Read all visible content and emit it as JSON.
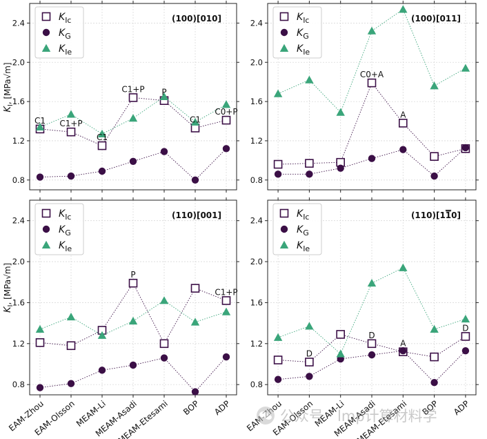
{
  "chart_data": {
    "type": "scatter",
    "layout": "2x2 grid",
    "shared_categories": [
      "EAM-Zhou",
      "EAM-Olsson",
      "MEAM-Li",
      "MEAM-Asadi",
      "MEAM-Etesami",
      "BOP",
      "ADP"
    ],
    "shared_ylabel_main": "K",
    "shared_ylabel_sub": "I",
    "shared_ylabel_unit": ", [MPa√m]",
    "ylim": [
      0.7,
      2.6
    ],
    "yticks": [
      "0.8",
      "1.2",
      "1.6",
      "2.0",
      "2.4"
    ],
    "grid": true,
    "legend_position": "upper left",
    "legend": [
      {
        "main": "K",
        "sub": "Ic",
        "marker": "square-open",
        "color": "#3b0f46"
      },
      {
        "main": "K",
        "sub": "G",
        "marker": "circle",
        "color": "#3b0f46"
      },
      {
        "main": "K",
        "sub": "Ie",
        "marker": "triangle",
        "color": "#3aa57a"
      }
    ],
    "panels": [
      {
        "title": "(100)[010]",
        "series": [
          {
            "name": "KIc",
            "values": [
              1.32,
              1.29,
              1.15,
              1.64,
              1.61,
              1.33,
              1.41
            ]
          },
          {
            "name": "KG",
            "values": [
              0.83,
              0.84,
              0.89,
              0.99,
              1.09,
              0.8,
              1.12
            ]
          },
          {
            "name": "KIe",
            "values": [
              1.34,
              1.47,
              1.27,
              1.43,
              1.65,
              1.39,
              1.57
            ]
          }
        ],
        "annotations": [
          "C1",
          "C1+P",
          "C1",
          "C1+P",
          "P",
          "C1",
          "C0+P"
        ]
      },
      {
        "title": "(100)[011]",
        "series": [
          {
            "name": "KIc",
            "values": [
              0.96,
              0.97,
              0.98,
              1.79,
              1.38,
              1.04,
              1.12
            ]
          },
          {
            "name": "KG",
            "values": [
              0.86,
              0.86,
              0.92,
              1.02,
              1.11,
              0.84,
              1.13
            ]
          },
          {
            "name": "KIe",
            "values": [
              1.68,
              1.82,
              1.49,
              2.32,
              2.54,
              1.76,
              1.94
            ]
          }
        ],
        "annotations": [
          "",
          "",
          "",
          "C0+A",
          "A",
          "",
          ""
        ]
      },
      {
        "title": "(110)[001]",
        "series": [
          {
            "name": "KIc",
            "values": [
              1.21,
              1.18,
              1.33,
              1.79,
              1.2,
              1.74,
              1.62
            ]
          },
          {
            "name": "KG",
            "values": [
              0.77,
              0.81,
              0.94,
              0.99,
              1.06,
              0.73,
              1.07
            ]
          },
          {
            "name": "KIe",
            "values": [
              1.34,
              1.46,
              1.28,
              1.42,
              1.62,
              1.41,
              1.51
            ]
          }
        ],
        "annotations": [
          "",
          "",
          "",
          "P",
          "",
          "",
          "C1+P"
        ]
      },
      {
        "title": "(110)[1",
        "title_over": "1",
        "title_tail": "0]",
        "series": [
          {
            "name": "KIc",
            "values": [
              1.04,
              1.02,
              1.29,
              1.2,
              1.12,
              1.07,
              1.27
            ]
          },
          {
            "name": "KG",
            "values": [
              0.85,
              0.88,
              1.05,
              1.09,
              1.13,
              0.82,
              1.13
            ]
          },
          {
            "name": "KIe",
            "values": [
              1.26,
              1.37,
              1.1,
              1.79,
              1.94,
              1.34,
              1.44
            ]
          }
        ],
        "annotations": [
          "",
          "D",
          "",
          "D",
          "A",
          "",
          "D"
        ]
      }
    ]
  },
  "watermark": {
    "text": "公众号 · lmp计算材料学",
    "icon": "wechat-icon"
  },
  "colors": {
    "kic": "#3b0f46",
    "kg": "#3b0f46",
    "kie": "#3aa57a",
    "grid": "#d9d9d9",
    "axis": "#222222"
  }
}
